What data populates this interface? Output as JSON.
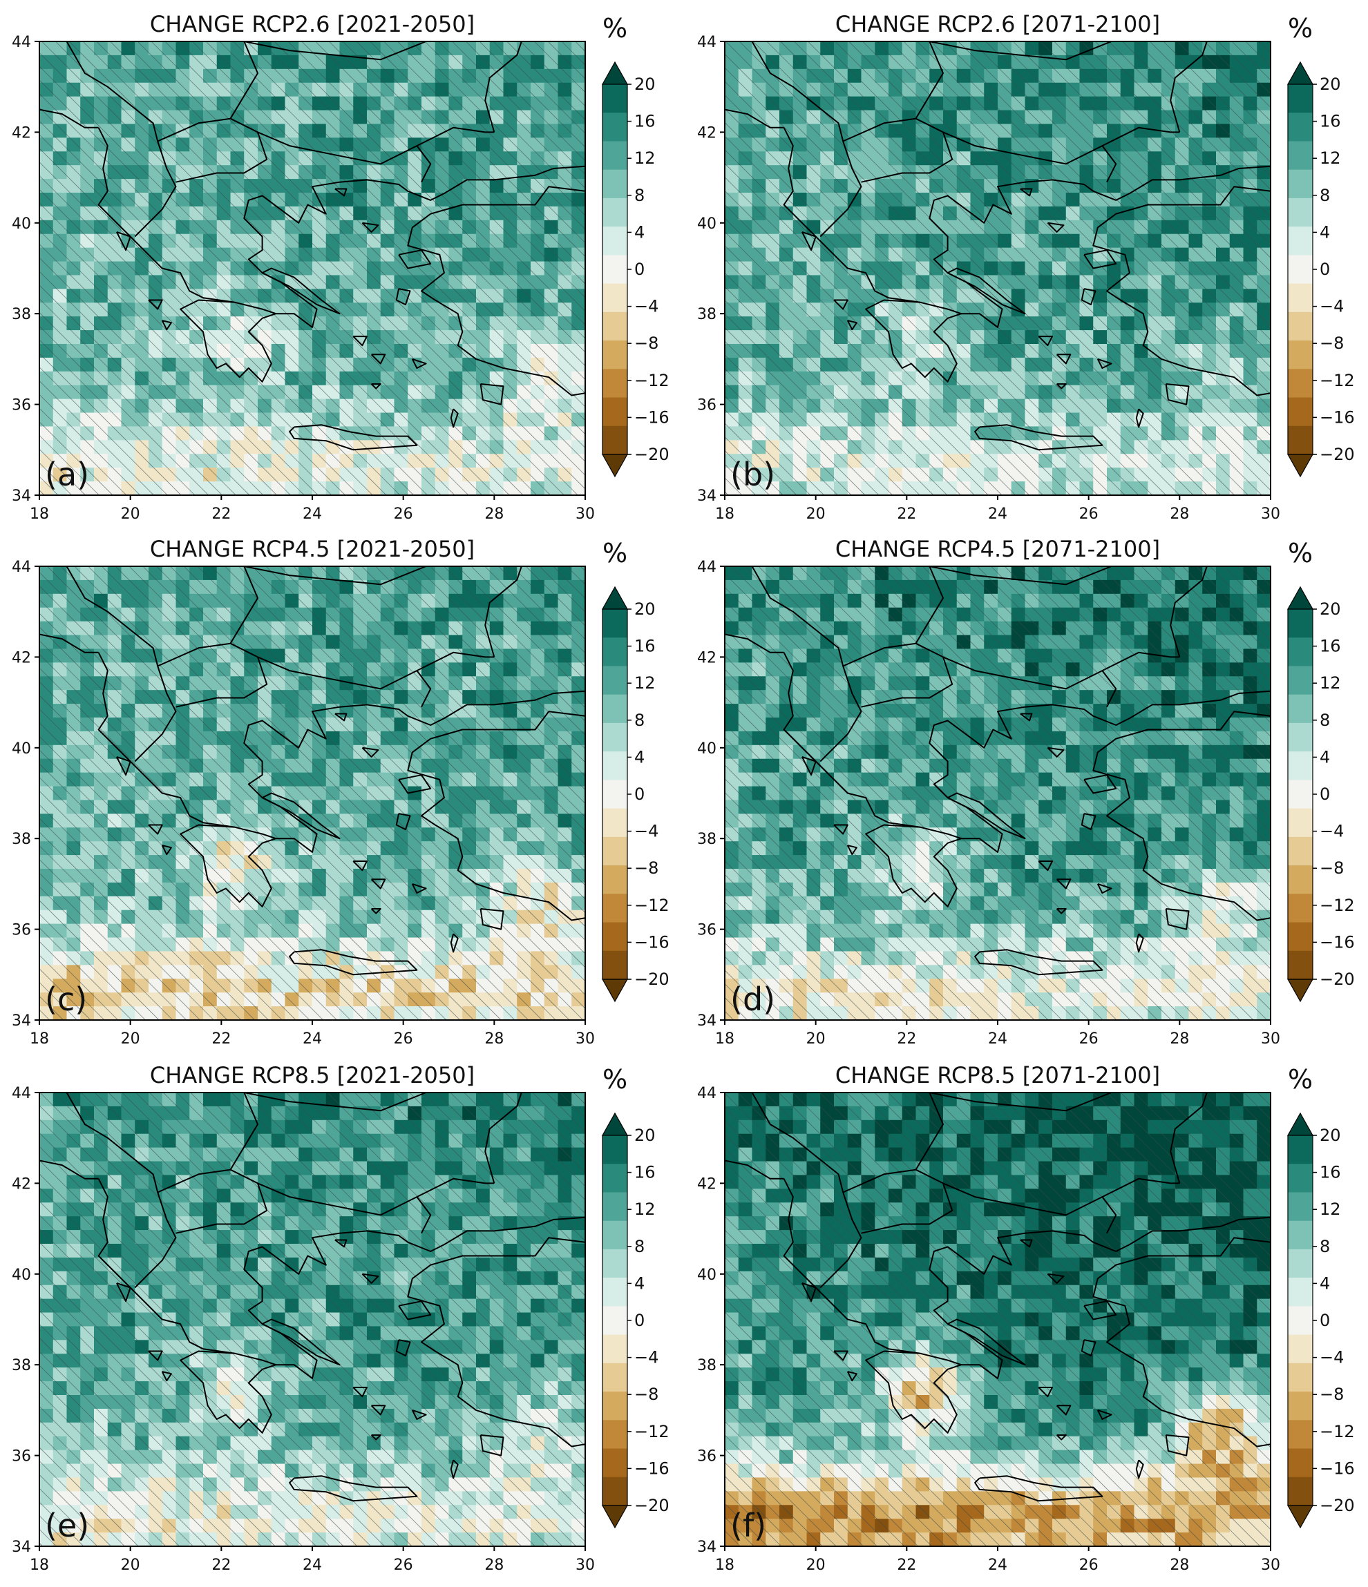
{
  "panels": [
    {
      "id": "a",
      "title": "CHANGE RCP2.6 [2021-2050]",
      "label": "(a)",
      "intensity": 0.45,
      "dry_south": 0.35,
      "scenario_seed": 3
    },
    {
      "id": "b",
      "title": "CHANGE RCP2.6 [2071-2100]",
      "label": "(b)",
      "intensity": 0.6,
      "dry_south": 0.3,
      "scenario_seed": 7
    },
    {
      "id": "c",
      "title": "CHANGE RCP4.5 [2021-2050]",
      "label": "(c)",
      "intensity": 0.45,
      "dry_south": 0.55,
      "scenario_seed": 11
    },
    {
      "id": "d",
      "title": "CHANGE RCP4.5 [2071-2100]",
      "label": "(d)",
      "intensity": 0.7,
      "dry_south": 0.45,
      "scenario_seed": 17
    },
    {
      "id": "e",
      "title": "CHANGE RCP8.5 [2021-2050]",
      "label": "(e)",
      "intensity": 0.6,
      "dry_south": 0.4,
      "scenario_seed": 23
    },
    {
      "id": "f",
      "title": "CHANGE RCP8.5 [2071-2100]",
      "label": "(f)",
      "intensity": 0.95,
      "dry_south": 0.95,
      "scenario_seed": 29
    }
  ],
  "chart_data": {
    "type": "heatmap",
    "x_ticks": [
      18,
      20,
      22,
      24,
      26,
      28,
      30
    ],
    "y_ticks": [
      34,
      36,
      38,
      40,
      42,
      44
    ],
    "xlim": [
      18,
      30
    ],
    "ylim": [
      34,
      44
    ],
    "colorbar": {
      "unit": "%",
      "ticks": [
        20,
        16,
        12,
        8,
        4,
        0,
        -4,
        -8,
        -12,
        -16,
        -20
      ],
      "range": [
        -20,
        20
      ],
      "colors_high_to_low": [
        "#00463a",
        "#0b6a5c",
        "#2a8a7c",
        "#4fa698",
        "#7ec2b6",
        "#acdad1",
        "#d6ede8",
        "#f3f3ef",
        "#f2e6c8",
        "#e6cc94",
        "#d4aa5e",
        "#c08838",
        "#a5681c",
        "#83500f",
        "#5e3a07"
      ]
    }
  }
}
